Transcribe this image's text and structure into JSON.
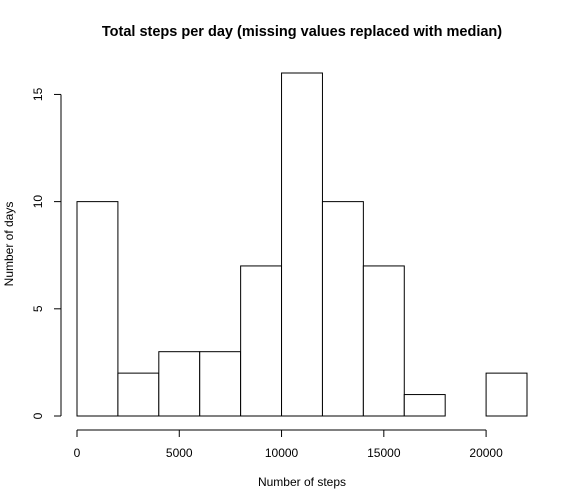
{
  "chart_data": {
    "type": "bar",
    "title": "Total steps per day (missing values replaced with median)",
    "xlabel": "Number of steps",
    "ylabel": "Number of days",
    "bins": [
      {
        "start": 0,
        "end": 2000,
        "count": 10
      },
      {
        "start": 2000,
        "end": 4000,
        "count": 2
      },
      {
        "start": 4000,
        "end": 6000,
        "count": 3
      },
      {
        "start": 6000,
        "end": 8000,
        "count": 3
      },
      {
        "start": 8000,
        "end": 10000,
        "count": 7
      },
      {
        "start": 10000,
        "end": 12000,
        "count": 16
      },
      {
        "start": 12000,
        "end": 14000,
        "count": 10
      },
      {
        "start": 14000,
        "end": 16000,
        "count": 7
      },
      {
        "start": 16000,
        "end": 18000,
        "count": 1
      },
      {
        "start": 18000,
        "end": 20000,
        "count": 0
      },
      {
        "start": 20000,
        "end": 22000,
        "count": 2
      }
    ],
    "xticks": [
      0,
      5000,
      10000,
      15000,
      20000
    ],
    "yticks": [
      0,
      5,
      10,
      15
    ],
    "xlim": [
      0,
      22000
    ],
    "ylim": [
      0,
      16
    ],
    "grid": false
  }
}
